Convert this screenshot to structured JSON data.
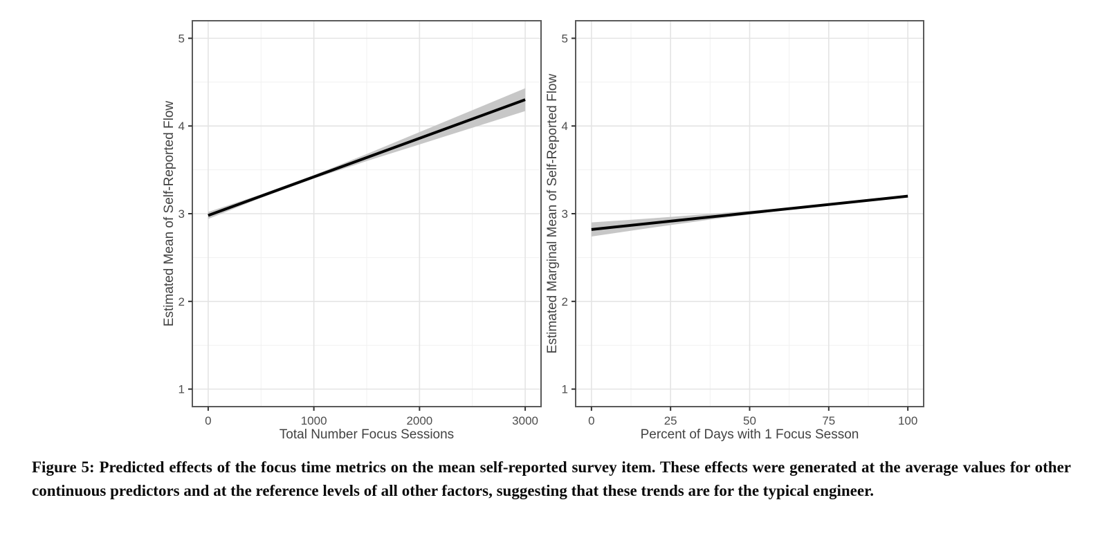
{
  "figure": {
    "caption": "Figure 5: Predicted effects of the focus time metrics on the mean self-reported survey item. These effects were generated at the average values for other continuous predictors and at the reference levels of all other factors, suggesting that these trends are for the typical engineer."
  },
  "colors": {
    "line": "#000000",
    "ribbon": "#c7c7c7",
    "grid_major": "#e4e4e4",
    "grid_minor": "#f1f1f1",
    "panel_border": "#595959",
    "tick_mark": "#333333",
    "tick_label": "#4d4d4d",
    "axis_title": "#424242"
  },
  "chart_data": [
    {
      "type": "line",
      "title": "",
      "xlabel": "Total Number Focus Sessions",
      "ylabel": "Estimated Mean of Self-Reported Flow",
      "xlim": [
        0,
        3000
      ],
      "ylim": [
        1,
        5
      ],
      "xticks": [
        0,
        1000,
        2000,
        3000
      ],
      "xtick_labels": [
        "0",
        "1000",
        "2000",
        "3000"
      ],
      "yticks": [
        1,
        2,
        3,
        4,
        5
      ],
      "ytick_labels": [
        "1",
        "2",
        "3",
        "4",
        "5"
      ],
      "grid": "on",
      "legend": "none",
      "series": [
        {
          "name": "predicted-mean",
          "x": [
            0,
            3000
          ],
          "y": [
            2.98,
            4.3
          ]
        }
      ],
      "ribbon": {
        "name": "confidence-band",
        "x": [
          0,
          500,
          1000,
          1500,
          2000,
          2500,
          3000
        ],
        "upper": [
          3.02,
          3.22,
          3.44,
          3.68,
          3.93,
          4.18,
          4.43
        ],
        "lower": [
          2.94,
          3.18,
          3.4,
          3.6,
          3.79,
          3.98,
          4.17
        ]
      }
    },
    {
      "type": "line",
      "title": "",
      "xlabel": "Percent of Days with 1 Focus Sesson",
      "ylabel": "Estimated Marginal Mean of Self-Reported Flow",
      "xlim": [
        0,
        100
      ],
      "ylim": [
        1,
        5
      ],
      "xticks": [
        0,
        25,
        50,
        75,
        100
      ],
      "xtick_labels": [
        "0",
        "25",
        "50",
        "75",
        "100"
      ],
      "yticks": [
        1,
        2,
        3,
        4,
        5
      ],
      "ytick_labels": [
        "1",
        "2",
        "3",
        "4",
        "5"
      ],
      "grid": "on",
      "legend": "none",
      "series": [
        {
          "name": "predicted-marginal-mean",
          "x": [
            0,
            100
          ],
          "y": [
            2.82,
            3.2
          ]
        }
      ],
      "ribbon": {
        "name": "confidence-band",
        "x": [
          0,
          20,
          40,
          60,
          80,
          100
        ],
        "upper": [
          2.9,
          2.95,
          3.005,
          3.06,
          3.135,
          3.215
        ],
        "lower": [
          2.74,
          2.845,
          2.945,
          3.035,
          3.115,
          3.185
        ]
      }
    }
  ]
}
